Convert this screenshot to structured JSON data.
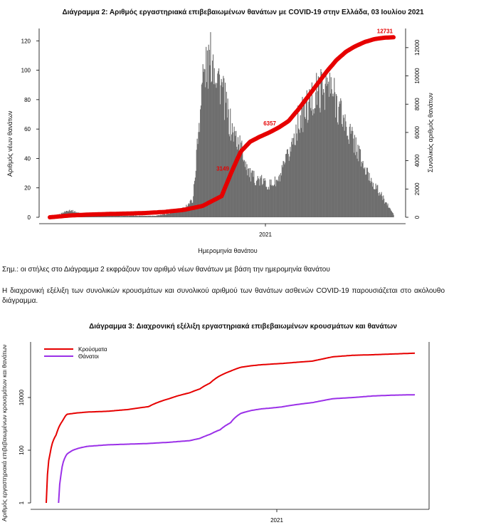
{
  "texts": {
    "chart2_title": "Διάγραμμα 2: Αριθμός εργαστηριακά επιβεβαιωμένων θανάτων με COVID-19 στην Ελλάδα, 03 Ιουλίου 2021",
    "chart2_ylabel_left": "Αριθμός νέων θανάτων",
    "chart2_ylabel_right": "Συνολικός αριθμός θανάτων",
    "chart2_xlabel": "Ημερομηνία θανάτου",
    "note": "Σημ.: οι στήλες στο Διάγραμμα 2 εκφράζουν τον αριθμό νέων θανάτων με βάση την ημερομηνία θανάτου",
    "paragraph": "Η διαχρονική εξέλιξη των συνολικών κρουσμάτων και συνολικού αριθμού των θανάτων ασθενών COVID-19 παρουσιάζεται στο ακόλουθο διάγραμμα.",
    "chart3_title": "Διάγραμμα 3: Διαχρονική εξέλιξη εργαστηριακά επιβεβαιωμένων κρουσμάτων και θανάτων",
    "chart3_ylabel": "Αριθμός εργαστηριακά επιβεβαιωμένων κρουσμάτων και θανάτων"
  },
  "chart_data": [
    {
      "type": "bar",
      "title": "Διάγραμμα 2: Αριθμός εργαστηριακά επιβεβαιωμένων θανάτων με COVID-19 στην Ελλάδα, 03 Ιουλίου 2021",
      "xlabel": "Ημερομηνία θανάτου",
      "ylabel": "Αριθμός νέων θανάτων",
      "ylabel_right": "Συνολικός αριθμός θανάτων",
      "x_tick_labels": [
        "2021"
      ],
      "ylim": [
        0,
        125
      ],
      "yticks": [
        0,
        20,
        40,
        60,
        80,
        100,
        120
      ],
      "y2lim": [
        0,
        13000
      ],
      "y2ticks": [
        0,
        2000,
        4000,
        6000,
        8000,
        10000,
        12000
      ],
      "series": [
        {
          "name": "",
          "kind": "bar",
          "color": "#6e6e6e",
          "x_month_index": [
            0,
            0.5,
            1,
            1.5,
            2,
            2.5,
            3,
            3.5,
            4,
            4.5,
            5,
            5.5,
            6,
            6.5,
            7,
            7.5,
            8,
            8.5,
            9,
            9.5,
            10,
            10.5,
            11,
            11.5,
            12,
            12.5,
            13,
            13.5,
            14,
            14.5,
            15,
            15.5,
            16,
            16.5,
            17,
            17.5,
            18
          ],
          "values": [
            0,
            2,
            5,
            3,
            1,
            1,
            1,
            1,
            1,
            1,
            1,
            1,
            2,
            3,
            6,
            12,
            95,
            110,
            88,
            60,
            48,
            28,
            25,
            22,
            25,
            42,
            65,
            75,
            85,
            90,
            80,
            62,
            50,
            32,
            22,
            12,
            2
          ]
        },
        {
          "name": "",
          "kind": "line",
          "axis": "right",
          "color": "#e60000",
          "x_month_index": [
            0,
            1,
            2,
            3,
            4,
            5,
            6,
            7,
            8,
            9,
            9.5,
            10,
            10.5,
            11,
            11.5,
            12,
            12.5,
            13,
            13.5,
            14,
            14.5,
            15,
            15.5,
            16,
            16.5,
            17,
            17.5,
            18
          ],
          "values": [
            0,
            120,
            190,
            230,
            260,
            300,
            380,
            520,
            800,
            1500,
            3149,
            4650,
            5350,
            5700,
            6000,
            6357,
            6800,
            7600,
            8500,
            9400,
            10300,
            11100,
            11700,
            12100,
            12400,
            12600,
            12700,
            12731
          ]
        }
      ],
      "annotations": [
        "3149",
        "6357",
        "12731"
      ]
    },
    {
      "type": "line",
      "title": "Διάγραμμα 3: Διαχρονική εξέλιξη εργαστηριακά επιβεβαιωμένων κρουσμάτων και θανάτων",
      "xlabel": "",
      "ylabel": "Αριθμός εργαστηριακά επιβεβαιωμένων κρουσμάτων και θανάτων",
      "x_tick_labels": [
        "2021"
      ],
      "y_scale": "log",
      "ylim": [
        1,
        1000000
      ],
      "yticks": [
        1,
        100,
        10000
      ],
      "legend_position": "top-left",
      "series": [
        {
          "name": "Κρούσματα",
          "color": "#e60000",
          "x_month_index": [
            0,
            0.05,
            0.2,
            0.5,
            0.8,
            1,
            1.5,
            2,
            3,
            4,
            5,
            6,
            7,
            7.5,
            8,
            9,
            9.5,
            10,
            10.5,
            11,
            11.5,
            12,
            13,
            13.5,
            14,
            15,
            16,
            17,
            18
          ],
          "values": [
            1,
            7,
            80,
            400,
            1300,
            2300,
            2600,
            2800,
            3000,
            3500,
            4500,
            9000,
            15000,
            21000,
            35000,
            100000,
            140000,
            160000,
            175000,
            185000,
            195000,
            210000,
            240000,
            290000,
            350000,
            400000,
            420000,
            450000,
            480000
          ]
        },
        {
          "name": "Θάνατοι",
          "color": "#9b30e8",
          "x_month_index": [
            0.6,
            0.7,
            1,
            1.3,
            1.6,
            2,
            2.5,
            3,
            4,
            5,
            6,
            7,
            7.5,
            8,
            8.5,
            9,
            9.5,
            10,
            10.5,
            11,
            11.5,
            12,
            13,
            13.5,
            14,
            15,
            16,
            17,
            18
          ],
          "values": [
            1,
            8,
            70,
            100,
            120,
            140,
            150,
            160,
            170,
            180,
            200,
            230,
            280,
            400,
            600,
            1100,
            2500,
            3200,
            3700,
            4000,
            4400,
            5100,
            6400,
            7600,
            9000,
            10000,
            11500,
            12300,
            12731
          ]
        }
      ]
    }
  ]
}
